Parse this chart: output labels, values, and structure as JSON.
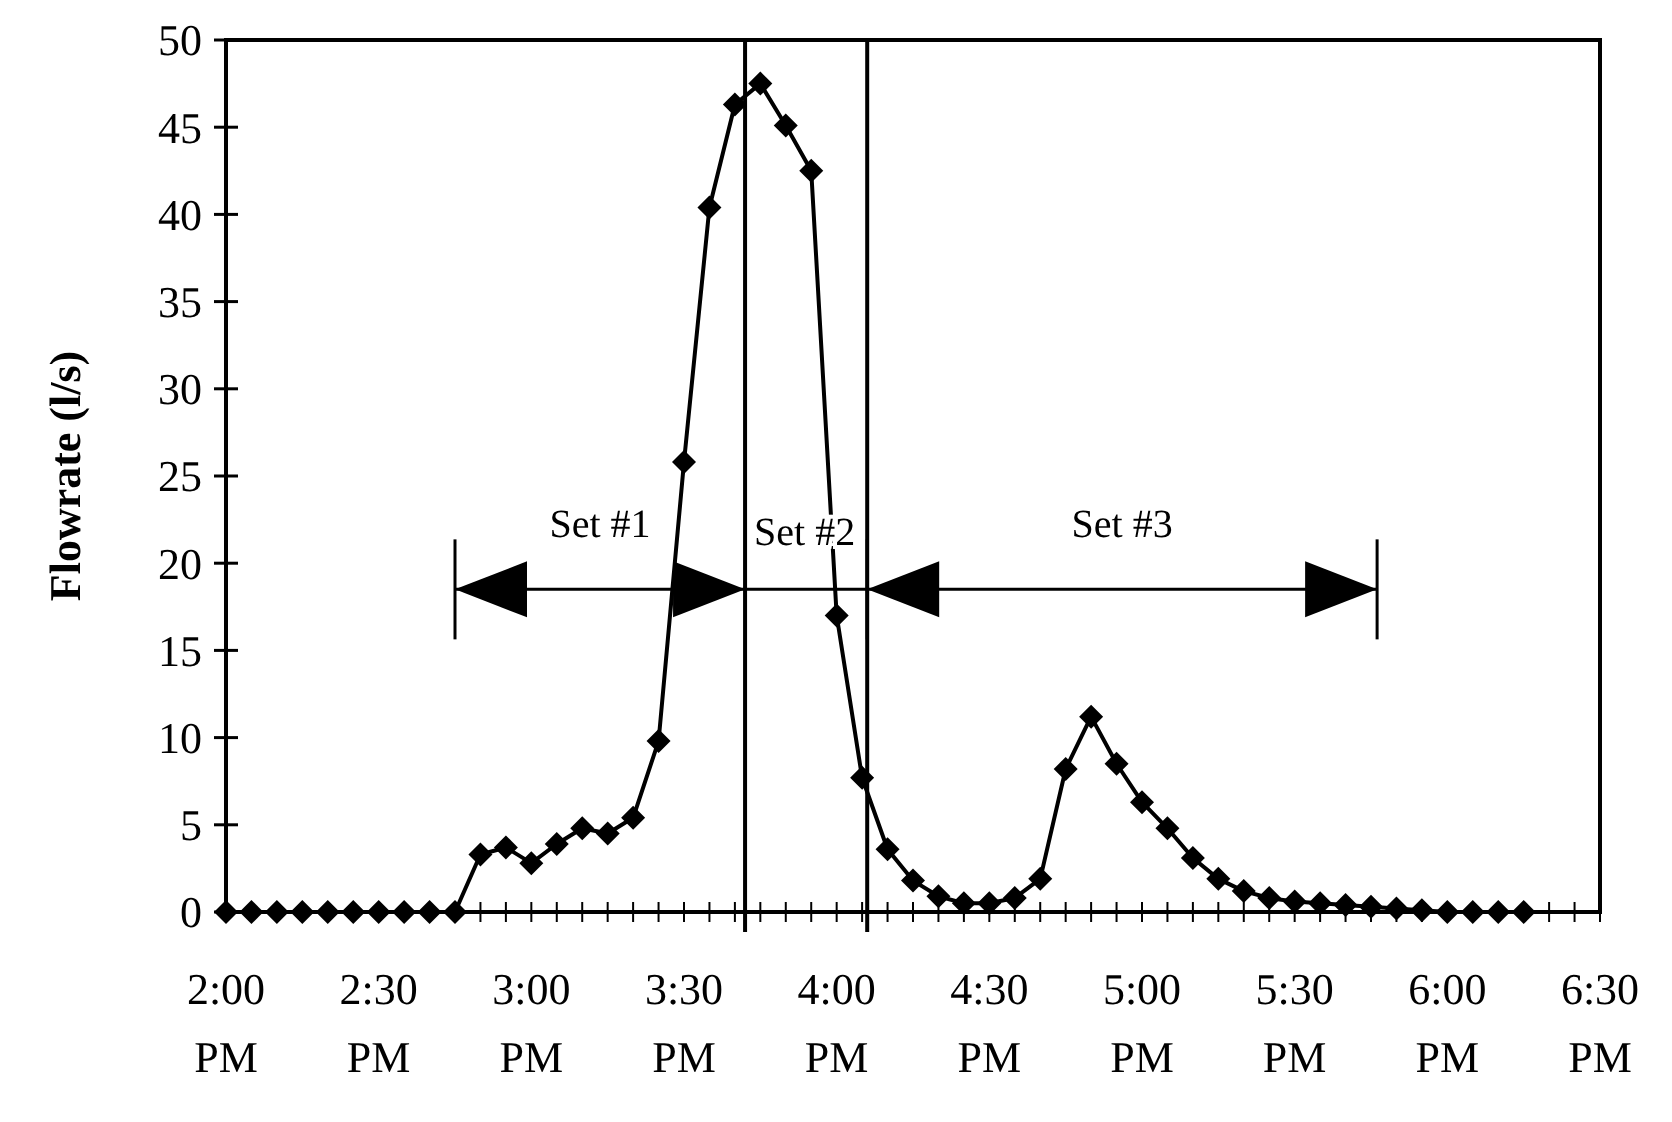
{
  "chart_data": {
    "type": "line",
    "ylabel": "Flowrate (l/s)",
    "x": [
      14,
      14.0833,
      14.1667,
      14.25,
      14.3333,
      14.4167,
      14.5,
      14.5833,
      14.6667,
      14.75,
      14.8333,
      14.9167,
      15,
      15.0833,
      15.1667,
      15.25,
      15.3333,
      15.4167,
      15.5,
      15.5833,
      15.6667,
      15.75,
      15.8333,
      15.9167,
      16,
      16.0833,
      16.1667,
      16.25,
      16.3333,
      16.4167,
      16.5,
      16.5833,
      16.6667,
      16.75,
      16.8333,
      16.9167,
      17,
      17.0833,
      17.1667,
      17.25,
      17.3333,
      17.4167,
      17.5,
      17.5833,
      17.6667,
      17.75,
      17.8333,
      17.9167,
      18,
      18.0833,
      18.1667,
      18.25
    ],
    "series": [
      {
        "color": "#000000",
        "values": [
          0,
          0,
          0,
          0,
          0,
          0,
          0,
          0,
          0,
          0,
          3.3,
          3.7,
          2.8,
          3.9,
          4.8,
          4.5,
          5.4,
          9.8,
          25.8,
          40.4,
          46.3,
          47.5,
          45.1,
          42.5,
          17,
          7.7,
          3.6,
          1.8,
          0.9,
          0.5,
          0.5,
          0.8,
          1.9,
          8.2,
          11.2,
          8.5,
          6.3,
          4.8,
          3.1,
          1.9,
          1.2,
          0.8,
          0.6,
          0.5,
          0.4,
          0.3,
          0.2,
          0.1,
          0,
          0,
          0,
          0
        ]
      }
    ],
    "xlim": [
      14,
      18.5
    ],
    "xticks": [
      {
        "value": 14,
        "label": "2:00 PM"
      },
      {
        "value": 14.5,
        "label": "2:30 PM"
      },
      {
        "value": 15,
        "label": "3:00 PM"
      },
      {
        "value": 15.5,
        "label": "3:30 PM"
      },
      {
        "value": 16,
        "label": "4:00 PM"
      },
      {
        "value": 16.5,
        "label": "4:30 PM"
      },
      {
        "value": 17,
        "label": "5:00 PM"
      },
      {
        "value": 17.5,
        "label": "5:30 PM"
      },
      {
        "value": 18,
        "label": "6:00 PM"
      },
      {
        "value": 18.5,
        "label": "6:30 PM"
      }
    ],
    "ylim": [
      0,
      50
    ],
    "yticks": [
      0,
      5,
      10,
      15,
      20,
      25,
      30,
      35,
      40,
      45,
      50
    ],
    "ref_lines": [
      {
        "axis": "x",
        "value": 15.7,
        "color": "#000000"
      },
      {
        "axis": "x",
        "value": 16.1,
        "color": "#000000"
      }
    ],
    "annotations": [
      "Set #1",
      {
        "text": "Set #2",
        "x": 16.1,
        "y": 18.5
      },
      "Set #3"
    ],
    "grid": false,
    "marker": "diamond",
    "line_style": "solid"
  }
}
